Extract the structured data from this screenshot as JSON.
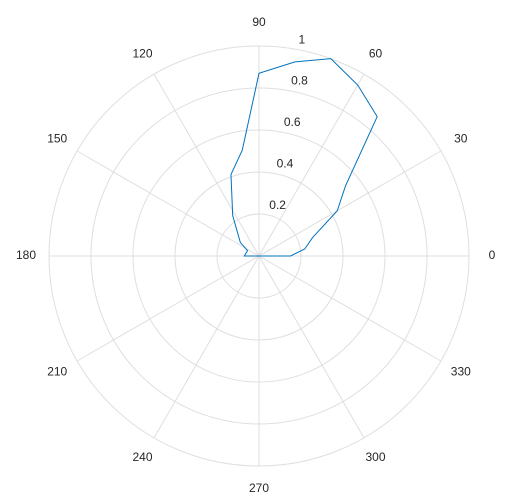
{
  "chart_data": {
    "type": "polar",
    "x": [
      0,
      0,
      8.7,
      19,
      30,
      39,
      49.7,
      60,
      70,
      79.5,
      90,
      99,
      109,
      123,
      128,
      144,
      155,
      180,
      200
    ],
    "series": [
      {
        "color": "#0072bd",
        "values": [
          0,
          0.15,
          0.22,
          0.27,
          0.43,
          0.53,
          0.87,
          0.94,
          1.0,
          0.94,
          0.87,
          0.51,
          0.41,
          0.23,
          0.18,
          0.11,
          0.06,
          0.07,
          0
        ]
      }
    ],
    "rlim": [
      0,
      1
    ],
    "rticks": [
      0.2,
      0.4,
      0.6,
      0.8,
      1
    ],
    "thetaticks": [
      0,
      30,
      60,
      90,
      120,
      150,
      180,
      210,
      240,
      270,
      300,
      330
    ],
    "grid": true
  }
}
